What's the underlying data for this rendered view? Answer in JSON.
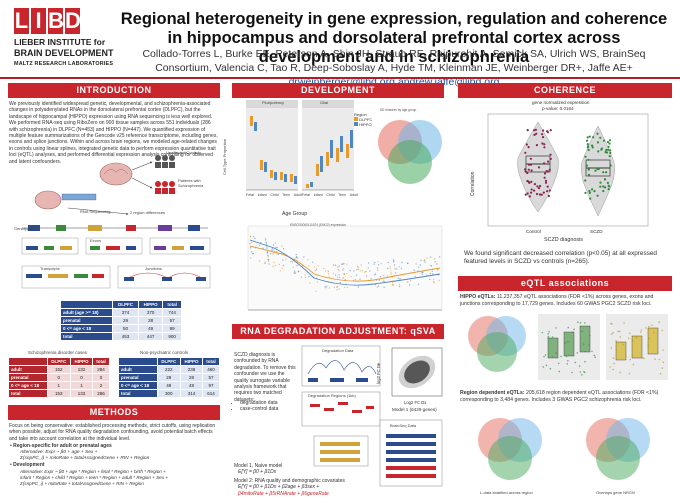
{
  "logo": {
    "letters": [
      "L",
      "I",
      "B",
      "D"
    ],
    "line1": "LIEBER INSTITUTE for",
    "line2": "BRAIN DEVELOPMENT",
    "line3": "MALTZ RESEARCH LABORATORIES"
  },
  "header": {
    "title": "Regional heterogeneity in gene expression, regulation and coherence in hippocampus and dorsolateral prefrontal cortex across development and in schizophrenia",
    "authors": "Collado-Torres L, Burke EE, Peterson A, Shin JH, Straub RE, Rajpurohit A, Semick SA, Ulrich WS, BrainSeq Consortium, Valencia C, Tao R, Deep-Soboslay A, Hyde TM, Kleinman JE, Weinberger DR+, Jaffe AE+",
    "emails": "drweinberger@libd.org andrew.jaffe@libd.org"
  },
  "introduction": {
    "heading": "INTRODUCTION",
    "body": "We previously identified widespread genetic, developmental, and schizophrenia-associated changes in polyadenylated RNAs in the dorsolateral prefrontal cortex (DLPFC), but the landscape of hippocampal (HIPPO) expression using RNA sequencing is less well explored. We performed RNA-seq using RiboZero on 900 tissue samples across 551 individuals (286 with schizophrenia) in DLPFC (N=453) and HIPPO (N=447). We quantified expression of multiple feature summarizations of the Gencode v25 reference transcriptome, including genes, exons and splice junctions. Within and across brain regions, we modeled age-related changes in controls using linear splines, integrated genetic data to perform expression quantitative trait loci (eQTL) analyses, and performed differential expression analysis controlling for observed and latent confounders.",
    "diagram": {
      "unaffected_controls": "Unaffected Controls",
      "patients": "Patients with Schizophrenia",
      "rna_seq": "RNA Sequencing",
      "regions": "2 region differences",
      "genotyping": "Genotyping",
      "exons": "Exons",
      "transcripts": "Transcripts",
      "junctions": "Junctions"
    },
    "table_main": {
      "headers": [
        "",
        "DLPFC",
        "HIPPO",
        "total"
      ],
      "rows": [
        [
          "adult (age >= 18)",
          "374",
          "370",
          "744"
        ],
        [
          "prenatal",
          "29",
          "28",
          "57"
        ],
        [
          "0 <= age < 18",
          "50",
          "49",
          "99"
        ],
        [
          "total",
          "453",
          "447",
          "900"
        ]
      ]
    },
    "table_scz": {
      "caption": "Schizophrenia disorder cases",
      "headers": [
        "",
        "DLPFC",
        "HIPPO",
        "total"
      ],
      "rows": [
        [
          "adult",
          "152",
          "132",
          "284"
        ],
        [
          "prenatal",
          "0",
          "0",
          "0"
        ],
        [
          "0 <= age < 18",
          "1",
          "1",
          "2"
        ],
        [
          "total",
          "153",
          "133",
          "286"
        ]
      ]
    },
    "table_ctrl": {
      "caption": "Non-psychiatric controls",
      "headers": [
        "",
        "DLPFC",
        "HIPPO",
        "total"
      ],
      "rows": [
        [
          "adult",
          "222",
          "238",
          "460"
        ],
        [
          "prenatal",
          "29",
          "28",
          "57"
        ],
        [
          "0 <= age < 18",
          "49",
          "48",
          "97"
        ],
        [
          "total",
          "300",
          "314",
          "614"
        ]
      ]
    }
  },
  "methods": {
    "heading": "METHODS",
    "body": "Focus on being conservative: established processing methods, strict cutoffs, using replication when possible, adjust for RNA quality degradation confounding, avoid potential batch effects and take into account correlation at the individual level.",
    "bullet1": "Region-specific for adult or prenatal ages",
    "bullet1_formula1": "Alternative: Expr ~ β0 + age + Sex +",
    "bullet1_formula2": "Σ(snpPC_i) + mitoRate + totalAssignedGene + RIN + Region",
    "bullet2": "Development",
    "bullet2_formula1": "Alternative: Expr ~ β0 + age * Region + fetal * Region + birth * Region +",
    "bullet2_formula2": "infant * Region + child * Region + teen * Region + adult * Region + Sex +",
    "bullet2_formula3": "Σ(snpPC_i) + mitoRate + totalAssignedGene + RIN + Region"
  },
  "development": {
    "heading": "DEVELOPMENT",
    "facet_labels": [
      "Pluripotency",
      "Glial"
    ],
    "ylabel": "Cell Type Proportion",
    "xlabel": "Age Group",
    "legend_title": "Region",
    "legend_items": [
      "DLPFC",
      "HIPPO"
    ],
    "age_groups": [
      "Fetal",
      "Infant",
      "Child",
      "Teen",
      "Adult"
    ],
    "venn_title": "DE features by age group",
    "scatter_title": "ENSG00000111674 (ENO2) expression"
  },
  "coherence": {
    "heading": "COHERENCE",
    "plot_title": "gene normalized expression",
    "plot_subtitle": "p-value: 0.0164",
    "ylabel": "Correlation",
    "xlabel": "SCZD diagnosis",
    "categories": [
      "Control",
      "SCZD"
    ],
    "body": "We found significant decreased correlation (p<0.05) at all expressed featured levels in SCZD vs controls (n=265)."
  },
  "rna_degradation": {
    "heading": "RNA DEGRADATION ADJUSTMENT: qSVA",
    "body": "SCZD diagnosis is confounded by RNA degradation. To remove this confounder we use the quality surrogate variable analysis framework that requires two matched datasets:",
    "bullets": [
      "degradation data",
      "case-control data"
    ],
    "diagram": {
      "degradation_data": "Degradation Data",
      "degradation_regions": "Degradation Regions (1kb)",
      "brainseq_data": "BrainSeq Data",
      "ylabel": "log2 FC De",
      "xlabel": "Log2 FC Dx",
      "caption": "Model 1 (6429 genes)"
    },
    "model1": "Model 1, Naive model",
    "model1_formula": "E[Y] = β0 + β1Dx",
    "model2": "Model 2: RNA quality and demographic covariates",
    "model2_formula1": "E[Y] = β0 + β1Dx + β2age + β3sex +",
    "model2_formula2": "β4mitoRate + β5rRNArate + β6geneRate"
  },
  "eqtl": {
    "heading": "eQTL associations",
    "hippo_label": "HIPPO eQTLs:",
    "hippo_body": "11,237,357 eQTL associations (FDR <1%) across genes, exons and junctions corresponding to 17,729 genes. Includes 60 GWAS PGC2 SCZD risk loci.",
    "region_label": "Region dependent eQTLs:",
    "region_body": "205,618 region dependent eQTL associations (FDR <1%) corresponding to 3,484 genes. Includes 3 GWAS PGC2 schizophrenia risk loci.",
    "venn_caption_left": "L-data stratified across region",
    "venn_caption_right": "Overlaps gene NRGN"
  },
  "colors": {
    "brand_red": "#c9252c",
    "dlpfc": "#e89a2c",
    "hippo": "#4f86c6",
    "control_violin": "#c0c0c0",
    "sczd_point": "#2f8a3b"
  }
}
